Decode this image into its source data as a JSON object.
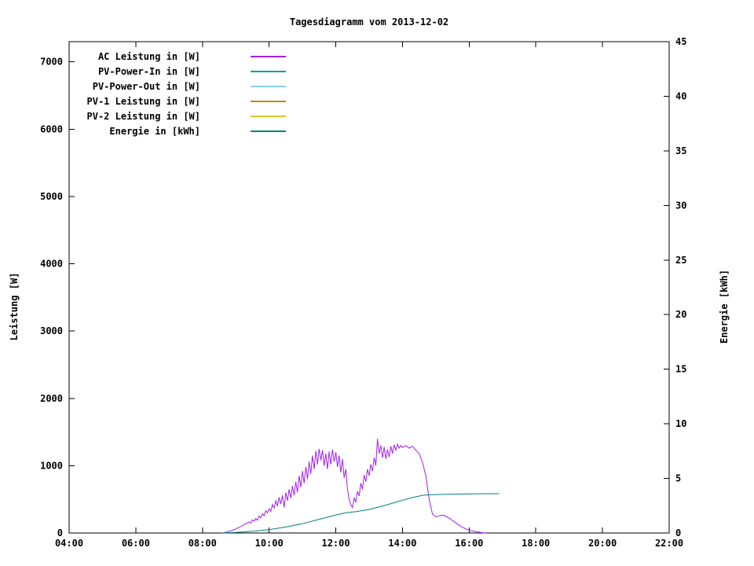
{
  "chart_data": {
    "type": "line",
    "title": "Tagesdiagramm vom 2013-12-02",
    "grid": false,
    "legend_position": "top-left",
    "x_axis": {
      "min": 4,
      "max": 22,
      "tick_values": [
        4,
        6,
        8,
        10,
        12,
        14,
        16,
        18,
        20,
        22
      ],
      "tick_labels": [
        "04:00",
        "06:00",
        "08:00",
        "10:00",
        "12:00",
        "14:00",
        "16:00",
        "18:00",
        "20:00",
        "22:00"
      ]
    },
    "y_left": {
      "label": "Leistung [W]",
      "min": 0,
      "max": 7300,
      "tick_values": [
        0,
        1000,
        2000,
        3000,
        4000,
        5000,
        6000,
        7000
      ]
    },
    "y_right": {
      "label": "Energie [kWh]",
      "min": 0,
      "max": 45,
      "tick_values": [
        0,
        5,
        10,
        15,
        20,
        25,
        30,
        35,
        40,
        45
      ]
    },
    "series": [
      {
        "name": "AC Leistung in [W]",
        "color": "#a020f0",
        "axis": "left",
        "points": [
          [
            8.6,
            0
          ],
          [
            8.7,
            10
          ],
          [
            8.8,
            25
          ],
          [
            8.9,
            40
          ],
          [
            9.0,
            60
          ],
          [
            9.1,
            85
          ],
          [
            9.2,
            110
          ],
          [
            9.3,
            140
          ],
          [
            9.4,
            165
          ],
          [
            9.45,
            150
          ],
          [
            9.5,
            195
          ],
          [
            9.55,
            175
          ],
          [
            9.6,
            215
          ],
          [
            9.65,
            190
          ],
          [
            9.7,
            250
          ],
          [
            9.75,
            225
          ],
          [
            9.8,
            285
          ],
          [
            9.85,
            255
          ],
          [
            9.9,
            330
          ],
          [
            9.95,
            300
          ],
          [
            10.0,
            360
          ],
          [
            10.05,
            320
          ],
          [
            10.1,
            420
          ],
          [
            10.15,
            370
          ],
          [
            10.2,
            480
          ],
          [
            10.25,
            400
          ],
          [
            10.3,
            530
          ],
          [
            10.35,
            430
          ],
          [
            10.4,
            560
          ],
          [
            10.45,
            380
          ],
          [
            10.5,
            600
          ],
          [
            10.55,
            480
          ],
          [
            10.6,
            650
          ],
          [
            10.65,
            520
          ],
          [
            10.7,
            700
          ],
          [
            10.75,
            560
          ],
          [
            10.8,
            760
          ],
          [
            10.85,
            600
          ],
          [
            10.9,
            850
          ],
          [
            10.95,
            680
          ],
          [
            11.0,
            920
          ],
          [
            11.05,
            740
          ],
          [
            11.1,
            980
          ],
          [
            11.15,
            800
          ],
          [
            11.2,
            1060
          ],
          [
            11.25,
            880
          ],
          [
            11.3,
            1150
          ],
          [
            11.35,
            950
          ],
          [
            11.4,
            1220
          ],
          [
            11.45,
            1020
          ],
          [
            11.5,
            1250
          ],
          [
            11.55,
            1080
          ],
          [
            11.6,
            1230
          ],
          [
            11.65,
            1000
          ],
          [
            11.7,
            1180
          ],
          [
            11.75,
            950
          ],
          [
            11.8,
            1210
          ],
          [
            11.85,
            1020
          ],
          [
            11.9,
            1240
          ],
          [
            11.95,
            1060
          ],
          [
            12.0,
            1200
          ],
          [
            12.05,
            980
          ],
          [
            12.1,
            1150
          ],
          [
            12.15,
            900
          ],
          [
            12.2,
            1100
          ],
          [
            12.25,
            820
          ],
          [
            12.3,
            950
          ],
          [
            12.35,
            650
          ],
          [
            12.4,
            500
          ],
          [
            12.45,
            420
          ],
          [
            12.5,
            380
          ],
          [
            12.55,
            520
          ],
          [
            12.6,
            460
          ],
          [
            12.65,
            620
          ],
          [
            12.7,
            550
          ],
          [
            12.75,
            740
          ],
          [
            12.8,
            650
          ],
          [
            12.85,
            860
          ],
          [
            12.9,
            760
          ],
          [
            12.95,
            950
          ],
          [
            13.0,
            850
          ],
          [
            13.05,
            1020
          ],
          [
            13.1,
            920
          ],
          [
            13.15,
            1120
          ],
          [
            13.2,
            1000
          ],
          [
            13.25,
            1400
          ],
          [
            13.3,
            1180
          ],
          [
            13.35,
            1300
          ],
          [
            13.4,
            1120
          ],
          [
            13.45,
            1280
          ],
          [
            13.5,
            1100
          ],
          [
            13.55,
            1240
          ],
          [
            13.6,
            1130
          ],
          [
            13.65,
            1290
          ],
          [
            13.7,
            1180
          ],
          [
            13.75,
            1310
          ],
          [
            13.8,
            1230
          ],
          [
            13.85,
            1320
          ],
          [
            13.9,
            1260
          ],
          [
            13.95,
            1300
          ],
          [
            14.0,
            1270
          ],
          [
            14.1,
            1300
          ],
          [
            14.2,
            1260
          ],
          [
            14.3,
            1290
          ],
          [
            14.4,
            1230
          ],
          [
            14.5,
            1180
          ],
          [
            14.6,
            1050
          ],
          [
            14.7,
            850
          ],
          [
            14.8,
            500
          ],
          [
            14.9,
            280
          ],
          [
            15.0,
            240
          ],
          [
            15.1,
            255
          ],
          [
            15.2,
            265
          ],
          [
            15.3,
            250
          ],
          [
            15.4,
            220
          ],
          [
            15.5,
            185
          ],
          [
            15.6,
            150
          ],
          [
            15.7,
            115
          ],
          [
            15.8,
            85
          ],
          [
            15.9,
            60
          ],
          [
            16.0,
            42
          ],
          [
            16.1,
            30
          ],
          [
            16.2,
            20
          ],
          [
            16.3,
            12
          ],
          [
            16.4,
            5
          ],
          [
            16.5,
            0
          ]
        ]
      },
      {
        "name": "PV-Power-In in [W]",
        "color": "#009e9e",
        "axis": "left",
        "points": []
      },
      {
        "name": "PV-Power-Out in [W]",
        "color": "#87cefa",
        "axis": "left",
        "points": []
      },
      {
        "name": "PV-1 Leistung in [W]",
        "color": "#cc8400",
        "axis": "left",
        "points": []
      },
      {
        "name": "PV-2 Leistung in [W]",
        "color": "#d8c830",
        "axis": "left",
        "points": []
      },
      {
        "name": "Energie in [kWh]",
        "color": "#008080",
        "axis": "right",
        "points": [
          [
            8.6,
            0
          ],
          [
            9.0,
            0.05
          ],
          [
            9.5,
            0.15
          ],
          [
            10.0,
            0.3
          ],
          [
            10.5,
            0.55
          ],
          [
            11.0,
            0.85
          ],
          [
            11.5,
            1.25
          ],
          [
            12.0,
            1.65
          ],
          [
            12.3,
            1.85
          ],
          [
            12.6,
            1.95
          ],
          [
            13.0,
            2.15
          ],
          [
            13.5,
            2.55
          ],
          [
            14.0,
            3.0
          ],
          [
            14.3,
            3.25
          ],
          [
            14.6,
            3.45
          ],
          [
            14.8,
            3.5
          ],
          [
            15.0,
            3.52
          ],
          [
            15.5,
            3.56
          ],
          [
            16.0,
            3.58
          ],
          [
            16.5,
            3.6
          ],
          [
            16.9,
            3.6
          ]
        ]
      }
    ]
  }
}
